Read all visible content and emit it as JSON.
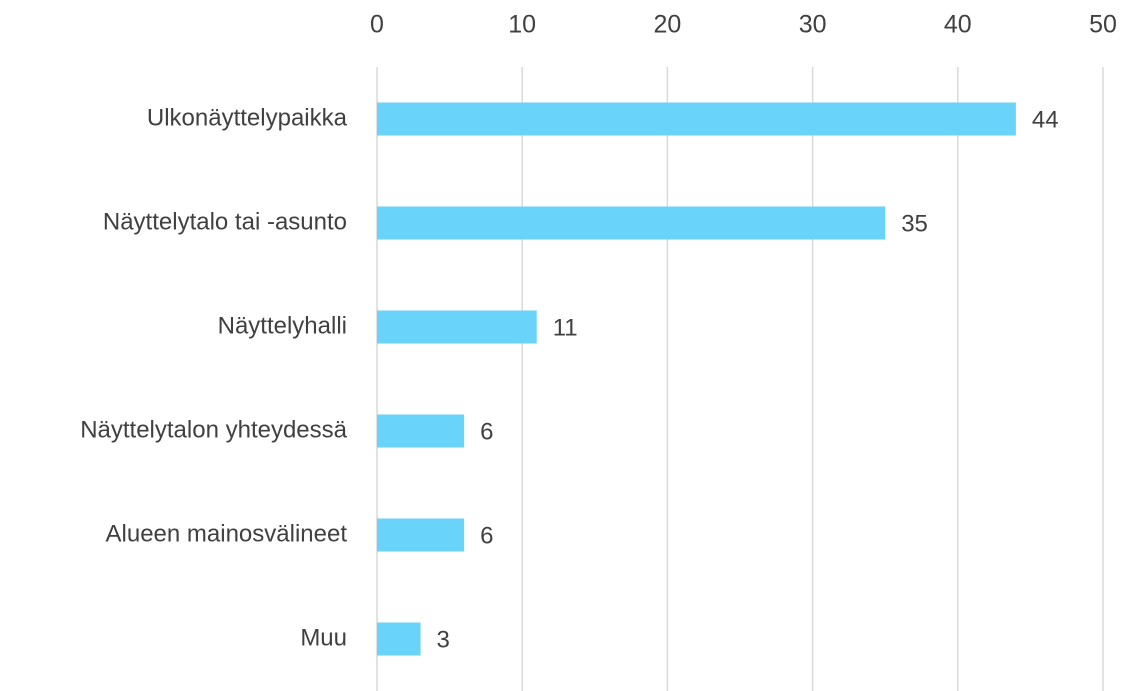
{
  "chart_data": {
    "type": "bar",
    "orientation": "horizontal",
    "categories": [
      "Ulkonäyttelypaikka",
      "Näyttelytalo tai -asunto",
      "Näyttelyhalli",
      "Näyttelytalon yhteydessä",
      "Alueen mainosvälineet",
      "Muu"
    ],
    "values": [
      44,
      35,
      11,
      6,
      6,
      3
    ],
    "color": "#6ad3fa",
    "xlim": [
      0,
      50
    ],
    "xticks": [
      0,
      10,
      20,
      30,
      40,
      50
    ],
    "grid": true,
    "data_labels": true
  }
}
